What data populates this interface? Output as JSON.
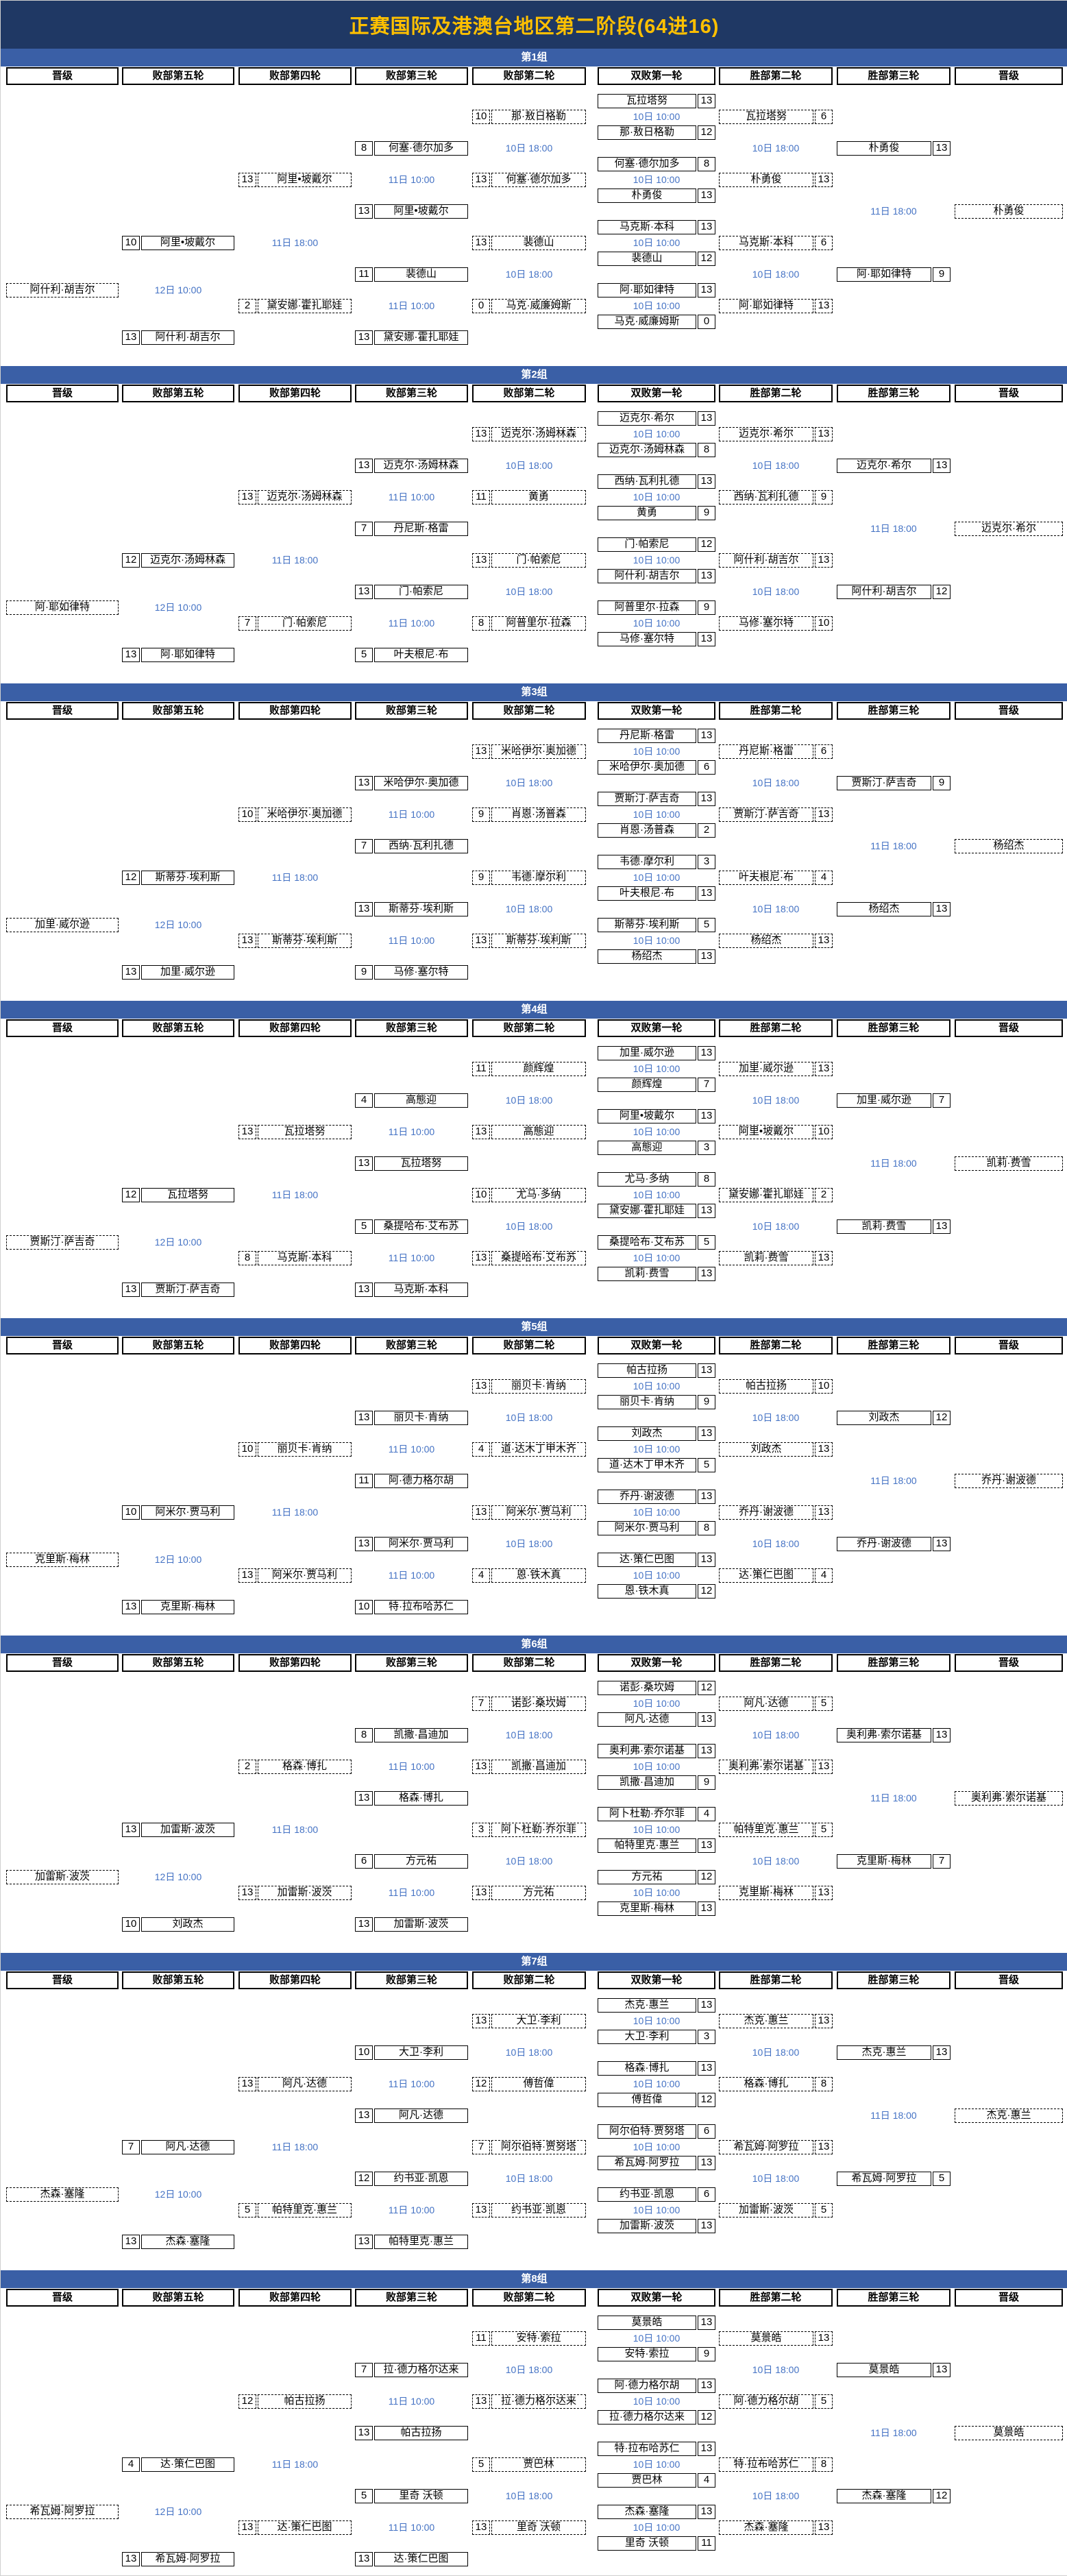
{
  "title": "正赛国际及港澳台地区第二阶段(64进16)",
  "columns": [
    "晋级",
    "败部第五轮",
    "败部第四轮",
    "败部第三轮",
    "败部第二轮",
    "双败第一轮",
    "胜部第二轮",
    "胜部第三轮",
    "晋级"
  ],
  "schedule": {
    "first_round": "10日 10:00",
    "wb2": "10日 18:00",
    "wb3": "11日 18:00",
    "lb2": "10日 18:00",
    "lb3": "11日 10:00",
    "lb4": "11日 18:00",
    "lb5": "12日 10:00"
  },
  "colors": {
    "title_bg": "#1F3864",
    "title_text": "#FFC000",
    "band_bg": "#3A5FA6",
    "date_text": "#4472C4",
    "box_border": "#000000"
  },
  "groups": [
    {
      "name": "第1组",
      "first_round": [
        {
          "p1": "瓦拉塔努",
          "s1": "13",
          "p2": "那·敖日格勒",
          "s2": "12"
        },
        {
          "p1": "何塞·德尔加多",
          "s1": "8",
          "p2": "朴勇俊",
          "s2": "13"
        },
        {
          "p1": "马克斯·本科",
          "s1": "13",
          "p2": "裴德山",
          "s2": "12"
        },
        {
          "p1": "阿·耶如律特",
          "s1": "13",
          "p2": "马克·威廉姆斯",
          "s2": "0"
        }
      ],
      "wb2": [
        {
          "p1": "瓦拉塔努",
          "s1": "6",
          "p2": "朴勇俊",
          "s2": "13"
        },
        {
          "p1": "马克斯·本科",
          "s1": "6",
          "p2": "阿·耶如律特",
          "s2": "13"
        }
      ],
      "wb3": {
        "p1": "朴勇俊",
        "s1": "13",
        "p2": "阿·耶如律特",
        "s2": "9"
      },
      "wb_qualifier": "朴勇俊",
      "lb2": [
        {
          "p1": "那·敖日格勒",
          "s1": "10",
          "p2": "何塞·德尔加多",
          "s2": "13"
        },
        {
          "p1": "裴德山",
          "s1": "13",
          "p2": "马克·威廉姆斯",
          "s2": "0"
        }
      ],
      "lb3": [
        {
          "p1": "何塞·德尔加多",
          "s1": "8",
          "p2": "阿里•坡戴尔",
          "s2": "13"
        },
        {
          "p1": "裴德山",
          "s1": "11",
          "p2": "黛安娜·霍扎耶娃",
          "s2": "13"
        }
      ],
      "lb4": {
        "p1": "阿里•坡戴尔",
        "s1": "13",
        "p2": "黛安娜·霍扎耶娃",
        "s2": "2"
      },
      "lb5": {
        "p1": "阿里•坡戴尔",
        "s1": "10",
        "p2": "阿什利·胡吉尔",
        "s2": "13"
      },
      "lb_qualifier": "阿什利·胡吉尔"
    },
    {
      "name": "第2组",
      "first_round": [
        {
          "p1": "迈克尔·希尔",
          "s1": "13",
          "p2": "迈克尔·汤姆林森",
          "s2": "8"
        },
        {
          "p1": "西纳·瓦利扎德",
          "s1": "13",
          "p2": "黄勇",
          "s2": "9"
        },
        {
          "p1": "门·帕索尼",
          "s1": "12",
          "p2": "阿什利·胡吉尔",
          "s2": "13"
        },
        {
          "p1": "阿普里尔·拉森",
          "s1": "9",
          "p2": "马修·塞尔特",
          "s2": "13"
        }
      ],
      "wb2": [
        {
          "p1": "迈克尔·希尔",
          "s1": "13",
          "p2": "西纳·瓦利扎德",
          "s2": "9"
        },
        {
          "p1": "阿什利·胡吉尔",
          "s1": "13",
          "p2": "马修·塞尔特",
          "s2": "10"
        }
      ],
      "wb3": {
        "p1": "迈克尔·希尔",
        "s1": "13",
        "p2": "阿什利·胡吉尔",
        "s2": "12"
      },
      "wb_qualifier": "迈克尔·希尔",
      "lb2": [
        {
          "p1": "迈克尔·汤姆林森",
          "s1": "13",
          "p2": "黄勇",
          "s2": "11"
        },
        {
          "p1": "门·帕索尼",
          "s1": "13",
          "p2": "阿普里尔·拉森",
          "s2": "8"
        }
      ],
      "lb3": [
        {
          "p1": "迈克尔·汤姆林森",
          "s1": "13",
          "p2": "丹尼斯·格雷",
          "s2": "7"
        },
        {
          "p1": "门·帕索尼",
          "s1": "13",
          "p2": "叶夫根尼·布",
          "s2": "5"
        }
      ],
      "lb4": {
        "p1": "迈克尔·汤姆林森",
        "s1": "13",
        "p2": "门·帕索尼",
        "s2": "7"
      },
      "lb5": {
        "p1": "迈克尔·汤姆林森",
        "s1": "12",
        "p2": "阿·耶如律特",
        "s2": "13"
      },
      "lb_qualifier": "阿·耶如律特"
    },
    {
      "name": "第3组",
      "first_round": [
        {
          "p1": "丹尼斯·格雷",
          "s1": "13",
          "p2": "米哈伊尔·奥加德",
          "s2": "6"
        },
        {
          "p1": "贾斯汀·萨吉奇",
          "s1": "13",
          "p2": "肖恩·汤普森",
          "s2": "2"
        },
        {
          "p1": "韦德·摩尔利",
          "s1": "3",
          "p2": "叶夫根尼·布",
          "s2": "13"
        },
        {
          "p1": "斯蒂芬·埃利斯",
          "s1": "5",
          "p2": "杨绍杰",
          "s2": "13"
        }
      ],
      "wb2": [
        {
          "p1": "丹尼斯·格雷",
          "s1": "6",
          "p2": "贾斯汀·萨吉奇",
          "s2": "13"
        },
        {
          "p1": "叶夫根尼·布",
          "s1": "4",
          "p2": "杨绍杰",
          "s2": "13"
        }
      ],
      "wb3": {
        "p1": "贾斯汀·萨吉奇",
        "s1": "9",
        "p2": "杨绍杰",
        "s2": "13"
      },
      "wb_qualifier": "杨绍杰",
      "lb2": [
        {
          "p1": "米哈伊尔·奥加德",
          "s1": "13",
          "p2": "肖恩·汤普森",
          "s2": "9"
        },
        {
          "p1": "韦德·摩尔利",
          "s1": "9",
          "p2": "斯蒂芬·埃利斯",
          "s2": "13"
        }
      ],
      "lb3": [
        {
          "p1": "米哈伊尔·奥加德",
          "s1": "13",
          "p2": "西纳·瓦利扎德",
          "s2": "7"
        },
        {
          "p1": "斯蒂芬·埃利斯",
          "s1": "13",
          "p2": "马修·塞尔特",
          "s2": "9"
        }
      ],
      "lb4": {
        "p1": "米哈伊尔·奥加德",
        "s1": "10",
        "p2": "斯蒂芬·埃利斯",
        "s2": "13"
      },
      "lb5": {
        "p1": "斯蒂芬·埃利斯",
        "s1": "12",
        "p2": "加里·威尔逊",
        "s2": "13"
      },
      "lb_qualifier": "加里·威尔逊"
    },
    {
      "name": "第4组",
      "first_round": [
        {
          "p1": "加里·威尔逊",
          "s1": "13",
          "p2": "颜辉煌",
          "s2": "7"
        },
        {
          "p1": "阿里•坡戴尔",
          "s1": "13",
          "p2": "高態迎",
          "s2": "3"
        },
        {
          "p1": "尤马·多纳",
          "s1": "8",
          "p2": "黛安娜·霍扎耶娃",
          "s2": "13"
        },
        {
          "p1": "桑提哈布·艾布苏",
          "s1": "5",
          "p2": "凯莉·费雪",
          "s2": "13"
        }
      ],
      "wb2": [
        {
          "p1": "加里·威尔逊",
          "s1": "13",
          "p2": "阿里•坡戴尔",
          "s2": "10"
        },
        {
          "p1": "黛安娜·霍扎耶娃",
          "s1": "2",
          "p2": "凯莉·费雪",
          "s2": "13"
        }
      ],
      "wb3": {
        "p1": "加里·威尔逊",
        "s1": "7",
        "p2": "凯莉·费雪",
        "s2": "13"
      },
      "wb_qualifier": "凯莉·费雪",
      "lb2": [
        {
          "p1": "颜辉煌",
          "s1": "11",
          "p2": "高態迎",
          "s2": "13"
        },
        {
          "p1": "尤马·多纳",
          "s1": "10",
          "p2": "桑提哈布·艾布苏",
          "s2": "13"
        }
      ],
      "lb3": [
        {
          "p1": "高態迎",
          "s1": "4",
          "p2": "瓦拉塔努",
          "s2": "13"
        },
        {
          "p1": "桑提哈布·艾布苏",
          "s1": "5",
          "p2": "马克斯·本科",
          "s2": "13"
        }
      ],
      "lb4": {
        "p1": "瓦拉塔努",
        "s1": "13",
        "p2": "马克斯·本科",
        "s2": "8"
      },
      "lb5": {
        "p1": "瓦拉塔努",
        "s1": "12",
        "p2": "贾斯汀·萨吉奇",
        "s2": "13"
      },
      "lb_qualifier": "贾斯汀·萨吉奇"
    },
    {
      "name": "第5组",
      "first_round": [
        {
          "p1": "帕古拉扬",
          "s1": "13",
          "p2": "丽贝卡·肯纳",
          "s2": "9"
        },
        {
          "p1": "刘政杰",
          "s1": "13",
          "p2": "道·达木丁甲木齐",
          "s2": "5"
        },
        {
          "p1": "乔丹·谢波德",
          "s1": "13",
          "p2": "阿米尔·贾马利",
          "s2": "8"
        },
        {
          "p1": "达·策仁巴图",
          "s1": "13",
          "p2": "恩·铁木真",
          "s2": "12"
        }
      ],
      "wb2": [
        {
          "p1": "帕古拉扬",
          "s1": "10",
          "p2": "刘政杰",
          "s2": "13"
        },
        {
          "p1": "乔丹·谢波德",
          "s1": "13",
          "p2": "达·策仁巴图",
          "s2": "4"
        }
      ],
      "wb3": {
        "p1": "刘政杰",
        "s1": "12",
        "p2": "乔丹·谢波德",
        "s2": "13"
      },
      "wb_qualifier": "乔丹·谢波德",
      "lb2": [
        {
          "p1": "丽贝卡·肯纳",
          "s1": "13",
          "p2": "道·达木丁甲木齐",
          "s2": "4"
        },
        {
          "p1": "阿米尔·贾马利",
          "s1": "13",
          "p2": "恩·铁木真",
          "s2": "4"
        }
      ],
      "lb3": [
        {
          "p1": "丽贝卡·肯纳",
          "s1": "13",
          "p2": "阿·德力格尔胡",
          "s2": "11"
        },
        {
          "p1": "阿米尔·贾马利",
          "s1": "13",
          "p2": "特·拉布哈苏仁",
          "s2": "10"
        }
      ],
      "lb4": {
        "p1": "丽贝卡·肯纳",
        "s1": "10",
        "p2": "阿米尔·贾马利",
        "s2": "13"
      },
      "lb5": {
        "p1": "阿米尔·贾马利",
        "s1": "10",
        "p2": "克里斯·梅林",
        "s2": "13"
      },
      "lb_qualifier": "克里斯·梅林"
    },
    {
      "name": "第6组",
      "first_round": [
        {
          "p1": "诺彭·桑坎姆",
          "s1": "12",
          "p2": "阿凡·达德",
          "s2": "13"
        },
        {
          "p1": "奥利弗·索尔诺基",
          "s1": "13",
          "p2": "凯撒·昌迪加",
          "s2": "9"
        },
        {
          "p1": "阿卜杜勒·乔尔菲",
          "s1": "4",
          "p2": "帕特里克·惠兰",
          "s2": "13"
        },
        {
          "p1": "方元祐",
          "s1": "12",
          "p2": "克里斯·梅林",
          "s2": "13"
        }
      ],
      "wb2": [
        {
          "p1": "阿凡·达德",
          "s1": "5",
          "p2": "奥利弗·索尔诺基",
          "s2": "13"
        },
        {
          "p1": "帕特里克·惠兰",
          "s1": "5",
          "p2": "克里斯·梅林",
          "s2": "13"
        }
      ],
      "wb3": {
        "p1": "奥利弗·索尔诺基",
        "s1": "13",
        "p2": "克里斯·梅林",
        "s2": "7"
      },
      "wb_qualifier": "奥利弗·索尔诺基",
      "lb2": [
        {
          "p1": "诺彭·桑坎姆",
          "s1": "7",
          "p2": "凯撒·昌迪加",
          "s2": "13"
        },
        {
          "p1": "阿卜杜勒·乔尔菲",
          "s1": "3",
          "p2": "方元祐",
          "s2": "13"
        }
      ],
      "lb3": [
        {
          "p1": "凯撒·昌迪加",
          "s1": "8",
          "p2": "格森·博扎",
          "s2": "13"
        },
        {
          "p1": "方元祐",
          "s1": "6",
          "p2": "加雷斯·波茨",
          "s2": "13"
        }
      ],
      "lb4": {
        "p1": "格森·博扎",
        "s1": "2",
        "p2": "加雷斯·波茨",
        "s2": "13"
      },
      "lb5": {
        "p1": "加雷斯·波茨",
        "s1": "13",
        "p2": "刘政杰",
        "s2": "10"
      },
      "lb_qualifier": "加雷斯·波茨"
    },
    {
      "name": "第7组",
      "first_round": [
        {
          "p1": "杰克·惠兰",
          "s1": "13",
          "p2": "大卫·李利",
          "s2": "3"
        },
        {
          "p1": "格森·博扎",
          "s1": "13",
          "p2": "傅哲偉",
          "s2": "12"
        },
        {
          "p1": "阿尔伯特·贾努塔",
          "s1": "6",
          "p2": "希瓦姆·阿罗拉",
          "s2": "13"
        },
        {
          "p1": "约书亚·凯恩",
          "s1": "6",
          "p2": "加雷斯·波茨",
          "s2": "13"
        }
      ],
      "wb2": [
        {
          "p1": "杰克·惠兰",
          "s1": "13",
          "p2": "格森·博扎",
          "s2": "8"
        },
        {
          "p1": "希瓦姆·阿罗拉",
          "s1": "13",
          "p2": "加雷斯·波茨",
          "s2": "5"
        }
      ],
      "wb3": {
        "p1": "杰克·惠兰",
        "s1": "13",
        "p2": "希瓦姆·阿罗拉",
        "s2": "5"
      },
      "wb_qualifier": "杰克·惠兰",
      "lb2": [
        {
          "p1": "大卫·李利",
          "s1": "13",
          "p2": "傅哲偉",
          "s2": "12"
        },
        {
          "p1": "阿尔伯特·贾努塔",
          "s1": "7",
          "p2": "约书亚·凯恩",
          "s2": "13"
        }
      ],
      "lb3": [
        {
          "p1": "大卫·李利",
          "s1": "10",
          "p2": "阿凡·达德",
          "s2": "13"
        },
        {
          "p1": "约书亚·凯恩",
          "s1": "12",
          "p2": "帕特里克·惠兰",
          "s2": "13"
        }
      ],
      "lb4": {
        "p1": "阿凡·达德",
        "s1": "13",
        "p2": "帕特里克·惠兰",
        "s2": "5"
      },
      "lb5": {
        "p1": "阿凡·达德",
        "s1": "7",
        "p2": "杰森·塞隆",
        "s2": "13"
      },
      "lb_qualifier": "杰森·塞隆"
    },
    {
      "name": "第8组",
      "first_round": [
        {
          "p1": "莫景皓",
          "s1": "13",
          "p2": "安特·索拉",
          "s2": "9"
        },
        {
          "p1": "阿·德力格尔胡",
          "s1": "13",
          "p2": "拉·德力格尔达来",
          "s2": "12"
        },
        {
          "p1": "特·拉布哈苏仁",
          "s1": "13",
          "p2": "贾巴林",
          "s2": "4"
        },
        {
          "p1": "杰森·塞隆",
          "s1": "13",
          "p2": "里奇 沃顿",
          "s2": "11"
        }
      ],
      "wb2": [
        {
          "p1": "莫景皓",
          "s1": "13",
          "p2": "阿·德力格尔胡",
          "s2": "5"
        },
        {
          "p1": "特·拉布哈苏仁",
          "s1": "8",
          "p2": "杰森·塞隆",
          "s2": "13"
        }
      ],
      "wb3": {
        "p1": "莫景皓",
        "s1": "13",
        "p2": "杰森·塞隆",
        "s2": "12"
      },
      "wb_qualifier": "莫景皓",
      "lb2": [
        {
          "p1": "安特·索拉",
          "s1": "11",
          "p2": "拉·德力格尔达来",
          "s2": "13"
        },
        {
          "p1": "贾巴林",
          "s1": "5",
          "p2": "里奇 沃顿",
          "s2": "13"
        }
      ],
      "lb3": [
        {
          "p1": "拉·德力格尔达来",
          "s1": "7",
          "p2": "帕古拉扬",
          "s2": "13"
        },
        {
          "p1": "里奇 沃顿",
          "s1": "5",
          "p2": "达·策仁巴图",
          "s2": "13"
        }
      ],
      "lb4": {
        "p1": "帕古拉扬",
        "s1": "12",
        "p2": "达·策仁巴图",
        "s2": "13"
      },
      "lb5": {
        "p1": "达·策仁巴图",
        "s1": "4",
        "p2": "希瓦姆·阿罗拉",
        "s2": "13"
      },
      "lb_qualifier": "希瓦姆·阿罗拉"
    }
  ]
}
